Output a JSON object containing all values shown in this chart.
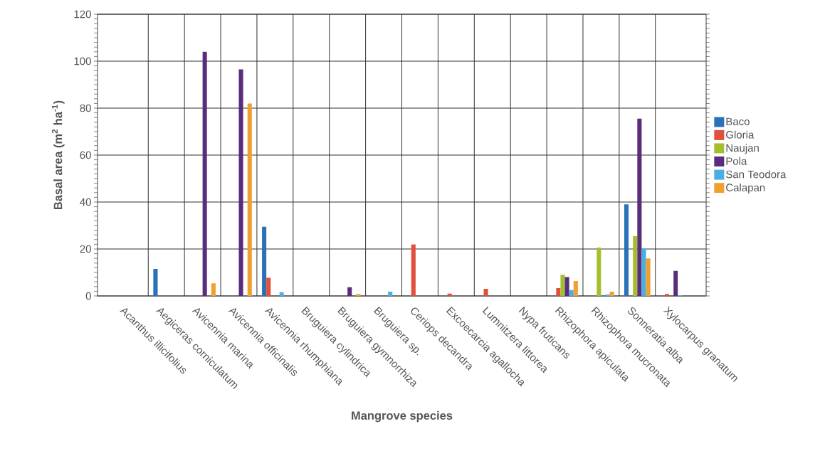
{
  "chart_data": {
    "type": "bar",
    "xlabel": "Mangrove species",
    "ylabel": "Basal area (m$^{2}$ ha$^{-1}$)",
    "categories": [
      "Acanthus illicifolius",
      "Aegiceras corniculatum",
      "Avicennia marina",
      "Avicennia officinalis",
      "Avicennia rhumphiana",
      "Bruguiera cylindrica",
      "Bruguiera gymnorrhiza",
      "Bruguiera sp.",
      "Ceriops decandra",
      "Excoecarcia agallocha",
      "Lumnitzera littorea",
      "Nypa fruticans",
      "Rhizophora apiculata",
      "Rhizophora mucronata",
      "Sonneratia alba",
      "Xylocarpus granatum"
    ],
    "series": [
      {
        "name": "Baco",
        "color": "#2a72b8",
        "values": [
          null,
          11.5,
          null,
          null,
          29.5,
          null,
          null,
          null,
          null,
          null,
          null,
          null,
          null,
          null,
          39,
          null
        ]
      },
      {
        "name": "Gloria",
        "color": "#e0503a",
        "values": [
          null,
          null,
          null,
          null,
          7.7,
          null,
          null,
          null,
          22,
          1,
          3,
          null,
          3.3,
          null,
          null,
          0.8
        ]
      },
      {
        "name": "Naujan",
        "color": "#a3bf2e",
        "values": [
          null,
          null,
          null,
          null,
          null,
          null,
          null,
          null,
          null,
          null,
          null,
          null,
          9,
          20.6,
          25.5,
          null
        ]
      },
      {
        "name": "Pola",
        "color": "#5a2d7c",
        "values": [
          null,
          null,
          104,
          96.5,
          null,
          null,
          3.7,
          null,
          null,
          null,
          null,
          null,
          8,
          null,
          75.5,
          10.7
        ]
      },
      {
        "name": "San Teodora",
        "color": "#4aaee0",
        "values": [
          null,
          null,
          null,
          null,
          1.6,
          null,
          null,
          1.8,
          null,
          null,
          null,
          null,
          2.5,
          0.6,
          20.2,
          0.3
        ]
      },
      {
        "name": "Calapan",
        "color": "#f0a030",
        "values": [
          null,
          null,
          5.4,
          82,
          null,
          null,
          0.8,
          null,
          null,
          null,
          null,
          null,
          6.4,
          1.8,
          16,
          null
        ]
      }
    ],
    "ylim": [
      0,
      120
    ],
    "yticks": [
      0,
      20,
      40,
      60,
      80,
      100,
      120
    ],
    "grid": true,
    "legend": "right"
  }
}
